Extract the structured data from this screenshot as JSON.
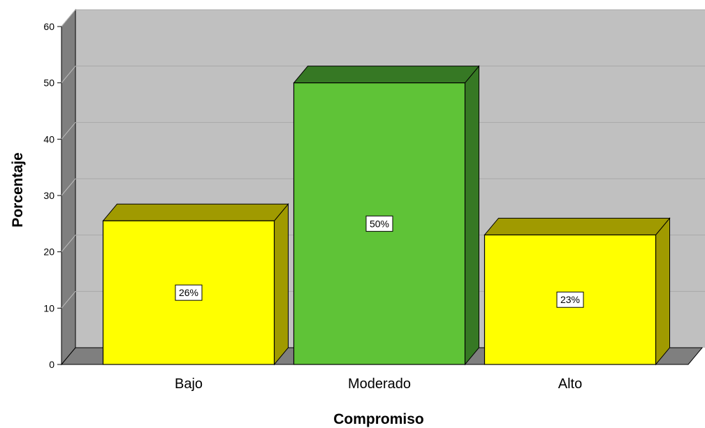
{
  "chart_data": {
    "type": "bar",
    "categories": [
      "Bajo",
      "Moderado",
      "Alto"
    ],
    "values": [
      25.5,
      50,
      23
    ],
    "data_labels": [
      "26%",
      "50%",
      "23%"
    ],
    "xlabel": "Compromiso",
    "ylabel": "Porcentaje",
    "ylim": [
      0,
      60
    ],
    "yticks": [
      "0",
      "10",
      "20",
      "30",
      "40",
      "50",
      "60"
    ],
    "grid": true,
    "style": "3d",
    "colors": {
      "plot_background": "#c0c0c0",
      "wall": "#7f7f7f",
      "yellow_front": "#ffff00",
      "yellow_side": "#a09a00",
      "green_front": "#5fc337",
      "green_side": "#367824"
    },
    "bar_colors": [
      "yellow",
      "green",
      "yellow"
    ]
  }
}
